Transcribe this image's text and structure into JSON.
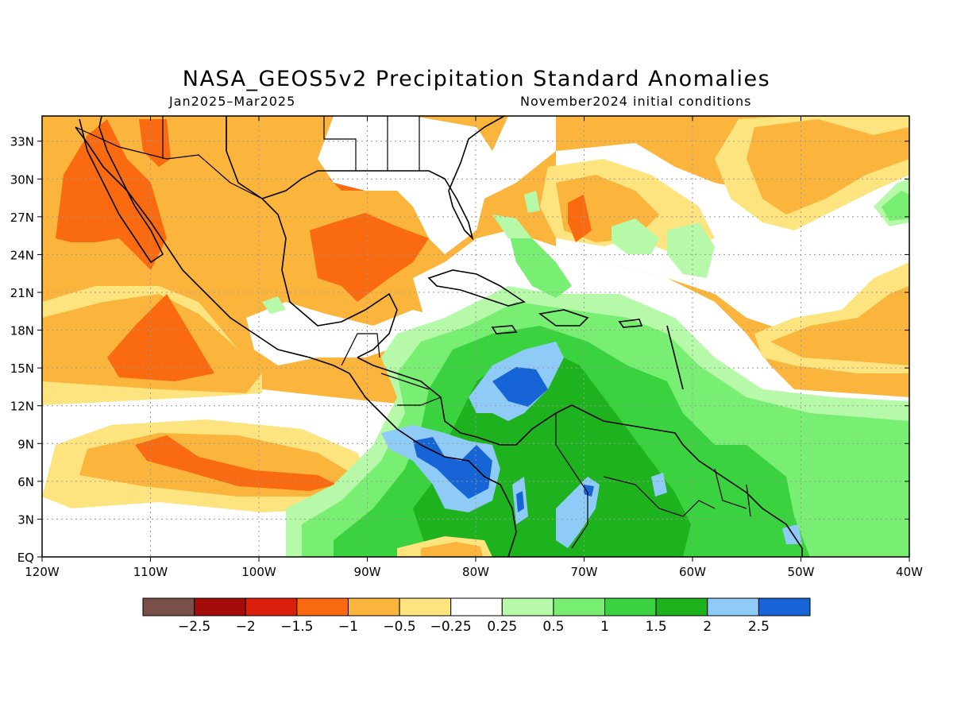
{
  "title": "NASA_GEOS5v2 Precipitation Standard Anomalies",
  "subtitle_left": "Jan2025–Mar2025",
  "subtitle_right": "November2024 initial conditions",
  "map": {
    "lon_range": [
      -120,
      -40
    ],
    "lat_range": [
      0,
      35
    ],
    "x_ticks": [
      "120W",
      "110W",
      "100W",
      "90W",
      "80W",
      "70W",
      "60W",
      "50W",
      "40W"
    ],
    "y_ticks": [
      "EQ",
      "3N",
      "6N",
      "9N",
      "12N",
      "15N",
      "18N",
      "21N",
      "24N",
      "27N",
      "30N",
      "33N"
    ]
  },
  "colorbar": {
    "colors": [
      "#7a4f47",
      "#a40c0a",
      "#dc1e0d",
      "#fa6a11",
      "#fbb43c",
      "#fde47f",
      "#ffffff",
      "#b6f9a8",
      "#78ee72",
      "#3ad33f",
      "#1eb21e",
      "#8fcbf7",
      "#1764d6"
    ],
    "labels": [
      "−2.5",
      "−2",
      "−1.5",
      "−1",
      "−0.5",
      "−0.25",
      "0.25",
      "0.5",
      "1",
      "1.5",
      "2",
      "2.5"
    ]
  }
}
